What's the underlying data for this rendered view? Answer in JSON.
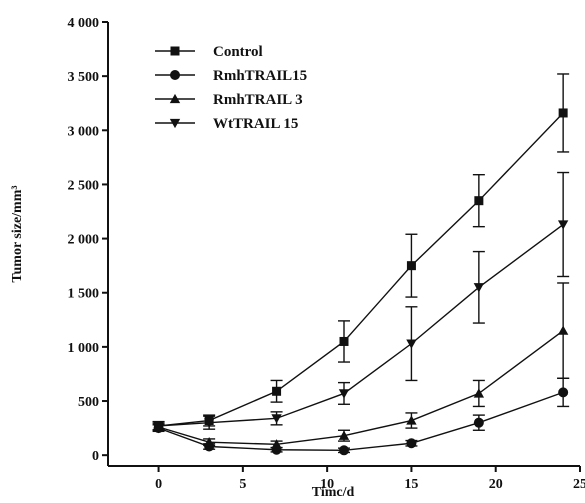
{
  "chart_data": {
    "type": "line",
    "title": "",
    "xlabel": "Timc/d",
    "ylabel": "Tumor size/mm³",
    "xlim": [
      -3,
      25
    ],
    "ylim": [
      -100,
      4000
    ],
    "x_ticks": [
      0,
      5,
      10,
      15,
      20,
      25
    ],
    "y_ticks": [
      0,
      500,
      1000,
      1500,
      2000,
      2500,
      3000,
      3500,
      4000
    ],
    "x_tick_labels": [
      "0",
      "5",
      "10",
      "15",
      "20",
      "25"
    ],
    "y_tick_labels": [
      "0",
      "500",
      "1 000",
      "1 500",
      "2 000",
      "2 500",
      "3 000",
      "3 500",
      "4 000"
    ],
    "grid": false,
    "legend_position": "top-left",
    "colors": {
      "line": "#111111",
      "background": "#ffffff"
    },
    "series": [
      {
        "name": "Control",
        "marker": "square",
        "x": [
          0,
          3,
          7,
          11,
          15,
          19,
          24
        ],
        "y": [
          270,
          320,
          590,
          1050,
          1750,
          2350,
          3160
        ],
        "error": [
          40,
          50,
          100,
          190,
          290,
          240,
          360
        ]
      },
      {
        "name": "RmhTRAIL15",
        "marker": "circle",
        "x": [
          0,
          3,
          7,
          11,
          15,
          19,
          24
        ],
        "y": [
          250,
          80,
          50,
          45,
          110,
          300,
          580
        ],
        "error": [
          30,
          25,
          20,
          20,
          25,
          70,
          130
        ]
      },
      {
        "name": "RmhTRAIL 3",
        "marker": "triangle-up",
        "x": [
          0,
          3,
          7,
          11,
          15,
          19,
          24
        ],
        "y": [
          260,
          120,
          100,
          180,
          320,
          570,
          1150
        ],
        "error": [
          30,
          30,
          30,
          50,
          70,
          120,
          440
        ]
      },
      {
        "name": "WtTRAIL 15",
        "marker": "triangle-down",
        "x": [
          0,
          3,
          7,
          11,
          15,
          19,
          24
        ],
        "y": [
          270,
          300,
          340,
          570,
          1030,
          1550,
          2130
        ],
        "error": [
          35,
          60,
          60,
          100,
          340,
          330,
          480
        ]
      }
    ]
  }
}
